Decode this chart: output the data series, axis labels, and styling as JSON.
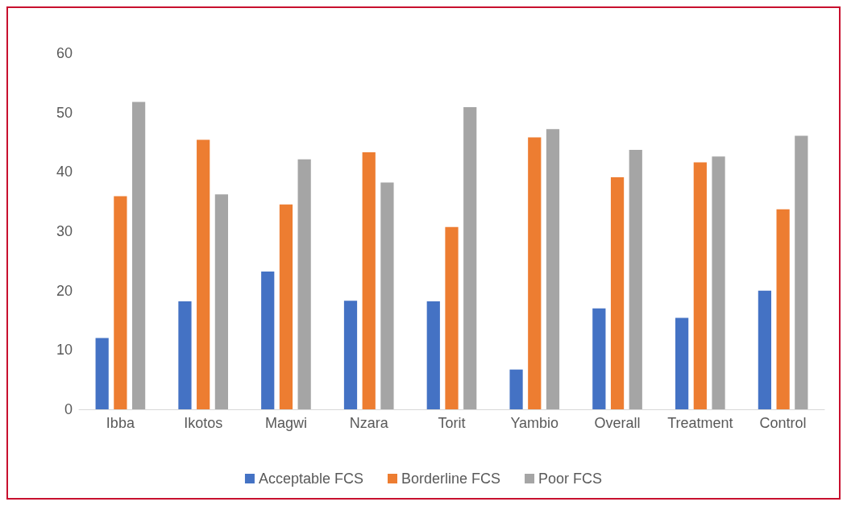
{
  "chart_data": {
    "type": "bar",
    "categories": [
      "Ibba",
      "Ikotos",
      "Magwi",
      "Nzara",
      "Torit",
      "Yambio",
      "Overall",
      "Treatment",
      "Control"
    ],
    "series": [
      {
        "name": "Acceptable FCS",
        "color": "#4472c4",
        "values": [
          12.0,
          18.2,
          23.2,
          18.3,
          18.2,
          6.7,
          17.0,
          15.4,
          20.0
        ]
      },
      {
        "name": "Borderline FCS",
        "color": "#ed7d31",
        "values": [
          35.9,
          45.4,
          34.5,
          43.3,
          30.7,
          45.8,
          39.1,
          41.6,
          33.7
        ]
      },
      {
        "name": "Poor FCS",
        "color": "#a5a5a5",
        "values": [
          51.8,
          36.2,
          42.1,
          38.2,
          50.9,
          47.2,
          43.7,
          42.6,
          46.1
        ]
      }
    ],
    "ylim": [
      0,
      60
    ],
    "yticks": [
      0,
      10,
      20,
      30,
      40,
      50,
      60
    ],
    "grid": false,
    "legend": "bottom"
  }
}
